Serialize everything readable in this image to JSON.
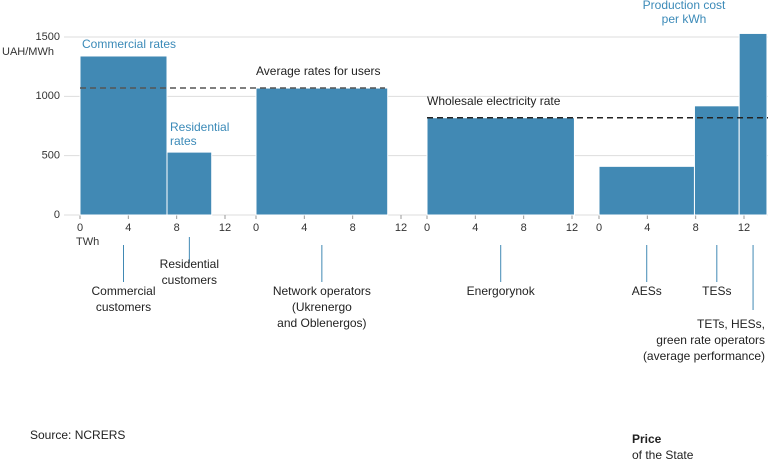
{
  "chart_data": {
    "type": "bar",
    "y_label": "UAH/MWh",
    "x_label": "TWh",
    "ylim": [
      0,
      1500
    ],
    "yticks": [
      0,
      500,
      1000,
      1500
    ],
    "grid": true,
    "color": "#4189b4",
    "panels": [
      {
        "xlim": [
          0,
          12
        ],
        "xticks": [
          0,
          4,
          8,
          12
        ],
        "bars": [
          {
            "x": [
              0,
              7.2
            ],
            "value": 1340,
            "label": [
              "Commercial",
              "customers"
            ]
          },
          {
            "x": [
              7.2,
              10.9
            ],
            "value": 530,
            "label": [
              "Residential",
              "customers"
            ]
          }
        ]
      },
      {
        "xlim": [
          0,
          12
        ],
        "xticks": [
          0,
          4,
          8,
          12
        ],
        "bars": [
          {
            "x": [
              0,
              10.9
            ],
            "value": 1070,
            "label": [
              "Network operators",
              "(Ukrenergo",
              "and Oblenergos)"
            ]
          }
        ]
      },
      {
        "xlim": [
          0,
          12
        ],
        "xticks": [
          0,
          4,
          8,
          12
        ],
        "bars": [
          {
            "x": [
              0,
              12.2
            ],
            "value": 820,
            "label": [
              "Energorynok"
            ]
          }
        ]
      },
      {
        "xlim": [
          0,
          14
        ],
        "xticks": [
          0,
          4,
          8,
          12
        ],
        "bars": [
          {
            "x": [
              0,
              7.9
            ],
            "value": 410,
            "label": [
              "AESs"
            ]
          },
          {
            "x": [
              7.9,
              11.6
            ],
            "value": 920,
            "label": [
              "TESs"
            ]
          },
          {
            "x": [
              11.6,
              13.9
            ],
            "value": 1530,
            "label": [
              "TETs, HESs,",
              "green rate operators",
              "(average performance)"
            ]
          }
        ]
      }
    ],
    "reference_lines": [
      {
        "label": "Average rates for users",
        "value": 1070
      },
      {
        "label": "Wholesale electricity rate",
        "value": 820
      }
    ],
    "annotations": [
      [
        "Commercial rates"
      ],
      [
        "Residential",
        "rates"
      ],
      [
        "Production cost",
        "per kWh"
      ]
    ],
    "source": "Source: NCRERS",
    "logo": [
      "Price",
      "of the State"
    ]
  }
}
